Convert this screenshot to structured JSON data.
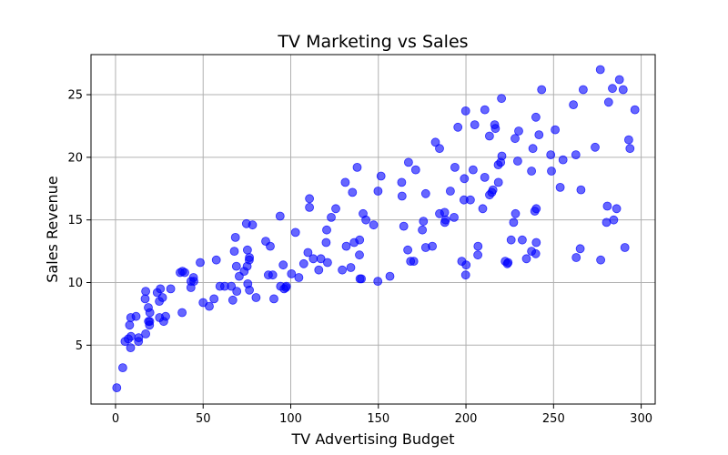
{
  "chart_data": {
    "type": "scatter",
    "title": "TV Marketing vs Sales",
    "xlabel": "TV Advertising Budget",
    "ylabel": "Sales Revenue",
    "xlim": [
      -14,
      308
    ],
    "ylim": [
      0.3,
      28.2
    ],
    "xticks": [
      0,
      50,
      100,
      150,
      200,
      250,
      300
    ],
    "yticks": [
      5,
      10,
      15,
      20,
      25
    ],
    "grid": true,
    "marker_color": "#0000ff",
    "marker_alpha": 0.6,
    "points": [
      [
        0.7,
        1.6
      ],
      [
        4.1,
        3.2
      ],
      [
        5.4,
        5.3
      ],
      [
        7.3,
        5.5
      ],
      [
        8.0,
        6.6
      ],
      [
        8.6,
        4.8
      ],
      [
        8.7,
        7.2
      ],
      [
        8.8,
        5.7
      ],
      [
        11.7,
        7.3
      ],
      [
        13.1,
        5.3
      ],
      [
        13.2,
        5.6
      ],
      [
        16.9,
        8.7
      ],
      [
        17.2,
        9.3
      ],
      [
        17.2,
        5.9
      ],
      [
        18.7,
        8.0
      ],
      [
        18.8,
        6.9
      ],
      [
        19.4,
        6.6
      ],
      [
        19.6,
        7.6
      ],
      [
        19.5,
        6.9
      ],
      [
        23.8,
        9.2
      ],
      [
        25.0,
        8.5
      ],
      [
        25.1,
        7.2
      ],
      [
        25.6,
        9.5
      ],
      [
        26.8,
        8.8
      ],
      [
        27.5,
        6.9
      ],
      [
        28.6,
        7.3
      ],
      [
        31.5,
        9.5
      ],
      [
        36.9,
        10.8
      ],
      [
        38.0,
        7.6
      ],
      [
        38.2,
        10.9
      ],
      [
        39.5,
        10.8
      ],
      [
        43.0,
        9.6
      ],
      [
        43.1,
        10.1
      ],
      [
        44.5,
        10.4
      ],
      [
        44.7,
        10.1
      ],
      [
        48.3,
        11.6
      ],
      [
        50.0,
        8.4
      ],
      [
        53.5,
        8.1
      ],
      [
        56.2,
        8.7
      ],
      [
        57.5,
        11.8
      ],
      [
        59.6,
        9.7
      ],
      [
        62.3,
        9.7
      ],
      [
        66.1,
        9.7
      ],
      [
        66.9,
        8.6
      ],
      [
        67.8,
        12.5
      ],
      [
        68.4,
        13.6
      ],
      [
        69.0,
        11.3
      ],
      [
        69.2,
        9.3
      ],
      [
        70.6,
        10.5
      ],
      [
        73.4,
        10.9
      ],
      [
        74.7,
        14.7
      ],
      [
        75.1,
        11.3
      ],
      [
        75.3,
        12.6
      ],
      [
        75.5,
        9.9
      ],
      [
        76.3,
        11.8
      ],
      [
        76.4,
        12.0
      ],
      [
        76.4,
        9.4
      ],
      [
        78.2,
        14.6
      ],
      [
        80.2,
        8.8
      ],
      [
        85.7,
        13.3
      ],
      [
        87.2,
        10.6
      ],
      [
        88.3,
        12.9
      ],
      [
        89.7,
        10.6
      ],
      [
        90.4,
        8.7
      ],
      [
        93.9,
        15.3
      ],
      [
        94.2,
        9.7
      ],
      [
        95.7,
        11.4
      ],
      [
        96.2,
        9.5
      ],
      [
        97.2,
        9.6
      ],
      [
        97.5,
        9.7
      ],
      [
        100.4,
        10.7
      ],
      [
        102.7,
        14.0
      ],
      [
        104.6,
        10.4
      ],
      [
        107.4,
        11.5
      ],
      [
        109.8,
        12.4
      ],
      [
        110.7,
        16.7
      ],
      [
        110.7,
        16.0
      ],
      [
        112.9,
        11.9
      ],
      [
        116.0,
        11.0
      ],
      [
        117.2,
        11.9
      ],
      [
        120.2,
        13.2
      ],
      [
        120.5,
        14.2
      ],
      [
        121.0,
        11.6
      ],
      [
        123.1,
        15.2
      ],
      [
        125.7,
        15.9
      ],
      [
        129.4,
        11.0
      ],
      [
        131.1,
        18.0
      ],
      [
        131.7,
        12.9
      ],
      [
        134.3,
        11.2
      ],
      [
        135.2,
        17.2
      ],
      [
        136.2,
        13.2
      ],
      [
        137.9,
        19.2
      ],
      [
        139.2,
        12.2
      ],
      [
        139.3,
        13.4
      ],
      [
        139.5,
        10.3
      ],
      [
        140.3,
        10.3
      ],
      [
        141.3,
        15.5
      ],
      [
        142.9,
        15.0
      ],
      [
        147.3,
        14.6
      ],
      [
        149.7,
        10.1
      ],
      [
        149.8,
        17.3
      ],
      [
        151.5,
        18.5
      ],
      [
        156.6,
        10.5
      ],
      [
        163.3,
        18.0
      ],
      [
        163.5,
        16.9
      ],
      [
        164.5,
        14.5
      ],
      [
        166.8,
        12.6
      ],
      [
        167.2,
        19.6
      ],
      [
        168.4,
        11.7
      ],
      [
        170.2,
        11.7
      ],
      [
        171.3,
        19.0
      ],
      [
        175.1,
        14.2
      ],
      [
        175.7,
        14.9
      ],
      [
        177.0,
        12.8
      ],
      [
        177.0,
        17.1
      ],
      [
        180.8,
        12.9
      ],
      [
        182.6,
        21.2
      ],
      [
        184.9,
        20.7
      ],
      [
        184.9,
        15.5
      ],
      [
        187.8,
        15.6
      ],
      [
        187.9,
        14.8
      ],
      [
        188.4,
        15.0
      ],
      [
        191.1,
        17.3
      ],
      [
        193.2,
        15.2
      ],
      [
        193.7,
        19.2
      ],
      [
        195.4,
        22.4
      ],
      [
        197.6,
        11.7
      ],
      [
        198.9,
        16.6
      ],
      [
        199.1,
        18.3
      ],
      [
        199.8,
        23.7
      ],
      [
        199.8,
        10.6
      ],
      [
        200.1,
        11.4
      ],
      [
        202.5,
        16.6
      ],
      [
        204.1,
        19.0
      ],
      [
        205.0,
        22.6
      ],
      [
        206.8,
        12.2
      ],
      [
        206.9,
        12.9
      ],
      [
        209.6,
        15.9
      ],
      [
        210.7,
        18.4
      ],
      [
        210.8,
        23.8
      ],
      [
        213.4,
        21.7
      ],
      [
        213.5,
        17.0
      ],
      [
        214.7,
        17.2
      ],
      [
        215.4,
        17.4
      ],
      [
        216.4,
        22.6
      ],
      [
        216.8,
        22.3
      ],
      [
        218.4,
        19.4
      ],
      [
        218.5,
        18.0
      ],
      [
        219.8,
        19.6
      ],
      [
        220.3,
        24.7
      ],
      [
        220.5,
        20.1
      ],
      [
        222.4,
        11.7
      ],
      [
        223.6,
        11.5
      ],
      [
        224.0,
        11.6
      ],
      [
        225.8,
        13.4
      ],
      [
        227.2,
        14.8
      ],
      [
        228.0,
        21.5
      ],
      [
        228.3,
        15.5
      ],
      [
        229.5,
        19.7
      ],
      [
        230.1,
        22.1
      ],
      [
        232.1,
        13.4
      ],
      [
        234.5,
        11.9
      ],
      [
        237.4,
        12.5
      ],
      [
        237.4,
        18.9
      ],
      [
        238.2,
        20.7
      ],
      [
        239.3,
        15.7
      ],
      [
        239.8,
        12.3
      ],
      [
        239.9,
        23.2
      ],
      [
        240.1,
        13.2
      ],
      [
        240.1,
        15.9
      ],
      [
        241.7,
        21.8
      ],
      [
        243.2,
        25.4
      ],
      [
        248.4,
        20.2
      ],
      [
        248.8,
        18.9
      ],
      [
        250.9,
        22.2
      ],
      [
        253.8,
        17.6
      ],
      [
        255.4,
        19.8
      ],
      [
        261.3,
        24.2
      ],
      [
        262.7,
        20.2
      ],
      [
        262.9,
        12.0
      ],
      [
        265.2,
        12.7
      ],
      [
        265.6,
        17.4
      ],
      [
        266.9,
        25.4
      ],
      [
        273.7,
        20.8
      ],
      [
        276.7,
        27.0
      ],
      [
        276.9,
        11.8
      ],
      [
        280.2,
        14.8
      ],
      [
        280.7,
        16.1
      ],
      [
        281.4,
        24.4
      ],
      [
        283.6,
        25.5
      ],
      [
        284.3,
        15.0
      ],
      [
        286.0,
        15.9
      ],
      [
        287.6,
        26.2
      ],
      [
        289.7,
        25.4
      ],
      [
        290.7,
        12.8
      ],
      [
        292.9,
        21.4
      ],
      [
        293.6,
        20.7
      ],
      [
        296.4,
        23.8
      ]
    ]
  }
}
